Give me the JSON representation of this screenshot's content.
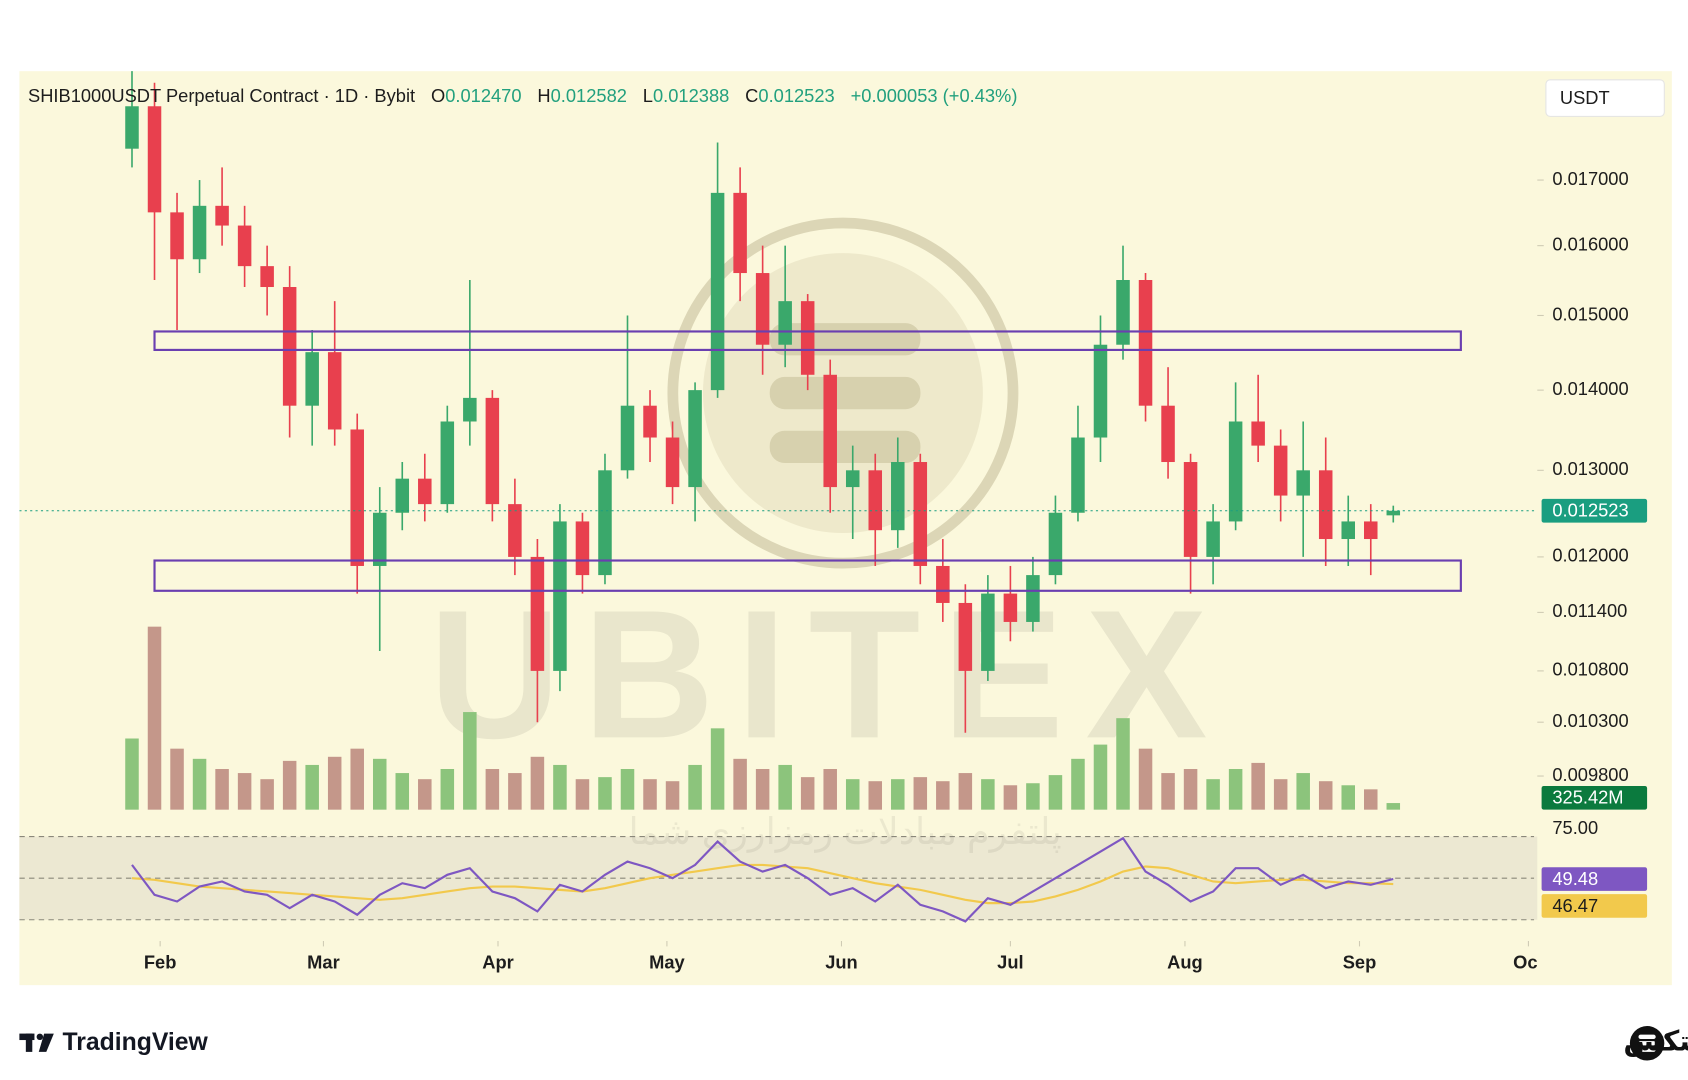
{
  "chart_data": {
    "type": "candlestick",
    "title": "SHIB1000USDT Perpetual Contract · 1D · Bybit",
    "ohlc_labels": [
      "O",
      "H",
      "L",
      "C"
    ],
    "ohlc_values": [
      "0.012470",
      "0.012582",
      "0.012388",
      "0.012523"
    ],
    "change": "+0.000053 (+0.43%)",
    "currency": "USDT",
    "log_scale": true,
    "grid": false,
    "up_color": "#3aa86b",
    "down_color": "#e8404e",
    "up_volume_color": "#8cc47c",
    "down_volume_color": "#c4978a",
    "rsi_color": "#7e57c2",
    "rsi_ma_color": "#f2c94c",
    "zone_color": "#6a3fb0",
    "xlim": [
      6,
      275
    ],
    "xticks": [
      {
        "value": 31,
        "label": "Feb"
      },
      {
        "value": 60,
        "label": "Mar"
      },
      {
        "value": 91,
        "label": "Apr"
      },
      {
        "value": 121,
        "label": "May"
      },
      {
        "value": 152,
        "label": "Jun"
      },
      {
        "value": 182,
        "label": "Jul"
      },
      {
        "value": 213,
        "label": "Aug"
      },
      {
        "value": 244,
        "label": "Sep"
      },
      {
        "value": 274,
        "label": "Oct"
      }
    ],
    "ylim": [
      0.0095,
      0.0188
    ],
    "yticks": [
      {
        "value": 0.017,
        "label": "0.017000"
      },
      {
        "value": 0.016,
        "label": "0.016000"
      },
      {
        "value": 0.015,
        "label": "0.015000"
      },
      {
        "value": 0.014,
        "label": "0.014000"
      },
      {
        "value": 0.013,
        "label": "0.013000"
      },
      {
        "value": 0.012,
        "label": "0.012000"
      },
      {
        "value": 0.0114,
        "label": "0.011400"
      },
      {
        "value": 0.0108,
        "label": "0.010800"
      },
      {
        "value": 0.0103,
        "label": "0.010300"
      },
      {
        "value": 0.0098,
        "label": "0.009800"
      }
    ],
    "x": [
      26,
      30,
      34,
      38,
      42,
      46,
      50,
      54,
      58,
      62,
      66,
      70,
      74,
      78,
      82,
      86,
      90,
      94,
      98,
      102,
      106,
      110,
      114,
      118,
      122,
      126,
      130,
      134,
      138,
      142,
      146,
      150,
      154,
      158,
      162,
      166,
      170,
      174,
      178,
      182,
      186,
      190,
      194,
      198,
      202,
      206,
      210,
      214,
      218,
      222,
      226,
      230,
      234,
      238,
      242,
      246,
      250
    ],
    "open": [
      0.0175,
      0.0182,
      0.0165,
      0.0158,
      0.0166,
      0.0163,
      0.0157,
      0.0154,
      0.0138,
      0.0145,
      0.0135,
      0.0119,
      0.0125,
      0.0129,
      0.0126,
      0.0136,
      0.0139,
      0.0126,
      0.012,
      0.0108,
      0.0124,
      0.0118,
      0.013,
      0.0138,
      0.0134,
      0.0128,
      0.014,
      0.0168,
      0.0156,
      0.0146,
      0.0152,
      0.0142,
      0.0128,
      0.013,
      0.0123,
      0.0131,
      0.0119,
      0.0115,
      0.0108,
      0.0116,
      0.0113,
      0.0118,
      0.0125,
      0.0134,
      0.0146,
      0.0155,
      0.0138,
      0.0131,
      0.012,
      0.0124,
      0.0136,
      0.0133,
      0.0127,
      0.013,
      0.0122,
      0.0124,
      0.01247
    ],
    "high": [
      0.019,
      0.0186,
      0.0168,
      0.017,
      0.0172,
      0.0166,
      0.016,
      0.0157,
      0.0148,
      0.0152,
      0.0137,
      0.0128,
      0.0131,
      0.0132,
      0.0138,
      0.0155,
      0.014,
      0.0129,
      0.0122,
      0.0126,
      0.0125,
      0.0132,
      0.015,
      0.014,
      0.0136,
      0.0141,
      0.0176,
      0.0172,
      0.016,
      0.016,
      0.0153,
      0.0144,
      0.0133,
      0.0132,
      0.0134,
      0.0132,
      0.0122,
      0.0117,
      0.0118,
      0.0119,
      0.012,
      0.0127,
      0.0138,
      0.015,
      0.016,
      0.0156,
      0.0143,
      0.0132,
      0.0126,
      0.0141,
      0.0142,
      0.0135,
      0.0136,
      0.0134,
      0.0127,
      0.0126,
      0.012582
    ],
    "low": [
      0.0172,
      0.0155,
      0.0148,
      0.0156,
      0.016,
      0.0154,
      0.015,
      0.0134,
      0.0133,
      0.0133,
      0.0116,
      0.011,
      0.0123,
      0.0124,
      0.0125,
      0.0133,
      0.0124,
      0.0118,
      0.0103,
      0.0106,
      0.0116,
      0.0117,
      0.0129,
      0.0131,
      0.0126,
      0.0124,
      0.0139,
      0.0152,
      0.0142,
      0.0143,
      0.014,
      0.0125,
      0.0122,
      0.0119,
      0.0121,
      0.0117,
      0.0113,
      0.0102,
      0.0107,
      0.0111,
      0.0112,
      0.0117,
      0.0124,
      0.0131,
      0.0144,
      0.0136,
      0.0129,
      0.0116,
      0.0117,
      0.0123,
      0.0131,
      0.0124,
      0.012,
      0.0119,
      0.0119,
      0.0118,
      0.012388
    ],
    "close": [
      0.0182,
      0.0165,
      0.0158,
      0.0166,
      0.0163,
      0.0157,
      0.0154,
      0.0138,
      0.0145,
      0.0135,
      0.0119,
      0.0125,
      0.0129,
      0.0126,
      0.0136,
      0.0139,
      0.0126,
      0.012,
      0.0108,
      0.0124,
      0.0118,
      0.013,
      0.0138,
      0.0134,
      0.0128,
      0.014,
      0.0168,
      0.0156,
      0.0146,
      0.0152,
      0.0142,
      0.0128,
      0.013,
      0.0123,
      0.0131,
      0.0119,
      0.0115,
      0.0108,
      0.0116,
      0.0113,
      0.0118,
      0.0125,
      0.0134,
      0.0146,
      0.0155,
      0.0138,
      0.0131,
      0.012,
      0.0124,
      0.0136,
      0.0133,
      0.0127,
      0.013,
      0.0122,
      0.0124,
      0.0122,
      0.012523
    ],
    "volume": [
      3500,
      9000,
      3000,
      2500,
      2000,
      1800,
      1500,
      2400,
      2200,
      2600,
      3000,
      2500,
      1800,
      1500,
      2000,
      4800,
      2000,
      1800,
      2600,
      2200,
      1500,
      1600,
      2000,
      1500,
      1400,
      2200,
      4000,
      2500,
      2000,
      2200,
      1600,
      2000,
      1500,
      1400,
      1500,
      1600,
      1400,
      1800,
      1500,
      1200,
      1300,
      1700,
      2500,
      3200,
      4500,
      3000,
      1800,
      2000,
      1500,
      2000,
      2300,
      1500,
      1800,
      1400,
      1200,
      1000,
      325.42
    ],
    "volume_label": "325.42M",
    "rsi": [
      58,
      40,
      36,
      45,
      48,
      42,
      40,
      32,
      40,
      36,
      28,
      40,
      47,
      44,
      52,
      56,
      42,
      38,
      30,
      46,
      42,
      52,
      60,
      56,
      50,
      58,
      72,
      60,
      54,
      58,
      50,
      40,
      44,
      36,
      46,
      34,
      30,
      24,
      38,
      34,
      42,
      50,
      58,
      66,
      74,
      54,
      46,
      36,
      42,
      56,
      56,
      46,
      52,
      44,
      48,
      46,
      49.48
    ],
    "rsi_ma": [
      50,
      49,
      47,
      45,
      44,
      43,
      42,
      41,
      40,
      39,
      38,
      37,
      38,
      40,
      42,
      44,
      45,
      45,
      44,
      43,
      42,
      44,
      47,
      50,
      52,
      54,
      56,
      58,
      58,
      57,
      56,
      53,
      50,
      47,
      45,
      43,
      40,
      37,
      35,
      35,
      36,
      39,
      43,
      48,
      54,
      57,
      56,
      52,
      48,
      47,
      48,
      49,
      49,
      48,
      47,
      47,
      46.47
    ],
    "rsi_ylim": [
      20,
      86
    ],
    "rsi_levels": [
      75,
      50,
      25
    ],
    "rsi_ticks": [
      {
        "value": 75,
        "label": "75.00"
      }
    ],
    "zones": [
      {
        "x": [
          30,
          262
        ],
        "y": [
          0.01453,
          0.01478
        ]
      },
      {
        "x": [
          30,
          262
        ],
        "y": [
          0.01163,
          0.01196
        ]
      }
    ]
  },
  "watermark": {
    "brand": "UBITEX",
    "slogan": "پلتفرم مبادلات رمزارزی شما"
  },
  "footer": {
    "left": "TradingView",
    "right": "یوبیتکس"
  }
}
